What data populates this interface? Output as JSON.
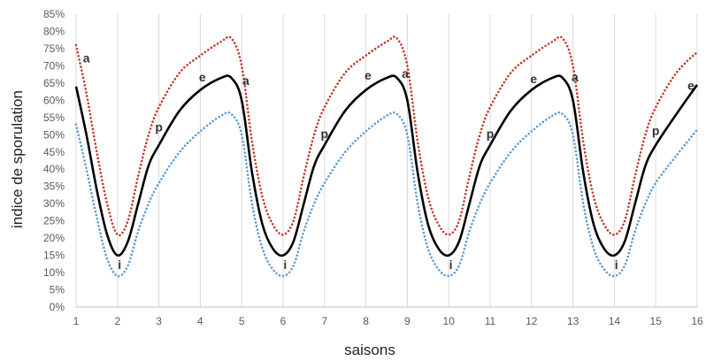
{
  "chart_data": {
    "type": "line",
    "title": "",
    "xlabel": "saisons",
    "ylabel": "indice de sporulation",
    "xlim": [
      1,
      16
    ],
    "ylim": [
      0,
      0.85
    ],
    "x_ticks": [
      1,
      2,
      3,
      4,
      5,
      6,
      7,
      8,
      9,
      10,
      11,
      12,
      13,
      14,
      15,
      16
    ],
    "y_ticks": [
      0,
      0.05,
      0.1,
      0.15,
      0.2,
      0.25,
      0.3,
      0.35,
      0.4,
      0.45,
      0.5,
      0.55,
      0.6,
      0.65,
      0.7,
      0.75,
      0.8,
      0.85
    ],
    "y_tick_labels": [
      "0%",
      "5%",
      "10%",
      "15%",
      "20%",
      "25%",
      "30%",
      "35%",
      "40%",
      "45%",
      "50%",
      "55%",
      "60%",
      "65%",
      "70%",
      "75%",
      "80%",
      "85%"
    ],
    "grid": {
      "vertical": true,
      "horizontal": false
    },
    "series": [
      {
        "style": "dotted",
        "color": "#c0392b",
        "x": [
          1,
          1.25,
          1.5,
          1.75,
          2,
          2.25,
          2.5,
          2.75,
          3,
          3.5,
          4,
          4.5,
          4.75,
          5,
          5.25,
          5.5,
          5.75,
          6,
          6.25,
          6.5,
          6.75,
          7,
          7.5,
          8,
          8.5,
          8.75,
          9,
          9.25,
          9.5,
          9.75,
          10,
          10.25,
          10.5,
          10.75,
          11,
          11.5,
          12,
          12.5,
          12.75,
          13,
          13.25,
          13.5,
          13.75,
          14,
          14.25,
          14.5,
          14.75,
          15,
          15.5,
          16
        ],
        "y": [
          0.76,
          0.62,
          0.45,
          0.3,
          0.21,
          0.25,
          0.38,
          0.5,
          0.58,
          0.68,
          0.73,
          0.77,
          0.78,
          0.7,
          0.48,
          0.32,
          0.24,
          0.21,
          0.25,
          0.38,
          0.5,
          0.58,
          0.68,
          0.73,
          0.77,
          0.78,
          0.7,
          0.48,
          0.32,
          0.24,
          0.21,
          0.25,
          0.38,
          0.5,
          0.58,
          0.68,
          0.73,
          0.77,
          0.78,
          0.7,
          0.48,
          0.32,
          0.24,
          0.21,
          0.25,
          0.38,
          0.5,
          0.58,
          0.68,
          0.74
        ]
      },
      {
        "style": "solid",
        "color": "#000000",
        "x": [
          1,
          1.25,
          1.5,
          1.75,
          2,
          2.25,
          2.5,
          2.75,
          3,
          3.5,
          4,
          4.5,
          4.75,
          5,
          5.25,
          5.5,
          5.75,
          6,
          6.25,
          6.5,
          6.75,
          7,
          7.5,
          8,
          8.5,
          8.75,
          9,
          9.25,
          9.5,
          9.75,
          10,
          10.25,
          10.5,
          10.75,
          11,
          11.5,
          12,
          12.5,
          12.75,
          13,
          13.25,
          13.5,
          13.75,
          14,
          14.25,
          14.5,
          14.75,
          15,
          15.5,
          16
        ],
        "y": [
          0.64,
          0.5,
          0.34,
          0.21,
          0.15,
          0.19,
          0.3,
          0.41,
          0.47,
          0.57,
          0.63,
          0.665,
          0.665,
          0.6,
          0.39,
          0.24,
          0.17,
          0.15,
          0.19,
          0.3,
          0.41,
          0.47,
          0.57,
          0.63,
          0.665,
          0.665,
          0.6,
          0.39,
          0.24,
          0.17,
          0.15,
          0.19,
          0.3,
          0.41,
          0.47,
          0.57,
          0.63,
          0.665,
          0.665,
          0.6,
          0.39,
          0.24,
          0.17,
          0.15,
          0.19,
          0.3,
          0.41,
          0.47,
          0.56,
          0.645
        ]
      },
      {
        "style": "dotted",
        "color": "#5b9bd5",
        "x": [
          1,
          1.25,
          1.5,
          1.75,
          2,
          2.25,
          2.5,
          2.75,
          3,
          3.5,
          4,
          4.5,
          4.75,
          5,
          5.25,
          5.5,
          5.75,
          6,
          6.25,
          6.5,
          6.75,
          7,
          7.5,
          8,
          8.5,
          8.75,
          9,
          9.25,
          9.5,
          9.75,
          10,
          10.25,
          10.5,
          10.75,
          11,
          11.5,
          12,
          12.5,
          12.75,
          13,
          13.25,
          13.5,
          13.75,
          14,
          14.25,
          14.5,
          14.75,
          15,
          15.5,
          16
        ],
        "y": [
          0.53,
          0.4,
          0.26,
          0.14,
          0.09,
          0.12,
          0.22,
          0.3,
          0.36,
          0.45,
          0.51,
          0.555,
          0.56,
          0.5,
          0.3,
          0.17,
          0.11,
          0.09,
          0.12,
          0.22,
          0.3,
          0.36,
          0.45,
          0.51,
          0.555,
          0.56,
          0.5,
          0.3,
          0.17,
          0.11,
          0.09,
          0.12,
          0.22,
          0.3,
          0.36,
          0.45,
          0.51,
          0.555,
          0.56,
          0.5,
          0.3,
          0.17,
          0.11,
          0.09,
          0.12,
          0.22,
          0.3,
          0.36,
          0.44,
          0.515
        ]
      }
    ],
    "annotations": [
      {
        "text": "a",
        "x": 1.25,
        "y": 0.71
      },
      {
        "text": "i",
        "x": 2.05,
        "y": 0.11
      },
      {
        "text": "p",
        "x": 3.0,
        "y": 0.51
      },
      {
        "text": "e",
        "x": 4.05,
        "y": 0.655
      },
      {
        "text": "a",
        "x": 5.1,
        "y": 0.645
      },
      {
        "text": "i",
        "x": 6.05,
        "y": 0.11
      },
      {
        "text": "p",
        "x": 7.0,
        "y": 0.49
      },
      {
        "text": "e",
        "x": 8.05,
        "y": 0.66
      },
      {
        "text": "a",
        "x": 8.95,
        "y": 0.665
      },
      {
        "text": "i",
        "x": 10.05,
        "y": 0.11
      },
      {
        "text": "p",
        "x": 11.0,
        "y": 0.49
      },
      {
        "text": "e",
        "x": 12.05,
        "y": 0.65
      },
      {
        "text": "a",
        "x": 13.05,
        "y": 0.655
      },
      {
        "text": "i",
        "x": 14.05,
        "y": 0.11
      },
      {
        "text": "p",
        "x": 15.0,
        "y": 0.5
      },
      {
        "text": "e",
        "x": 15.85,
        "y": 0.63
      }
    ]
  }
}
